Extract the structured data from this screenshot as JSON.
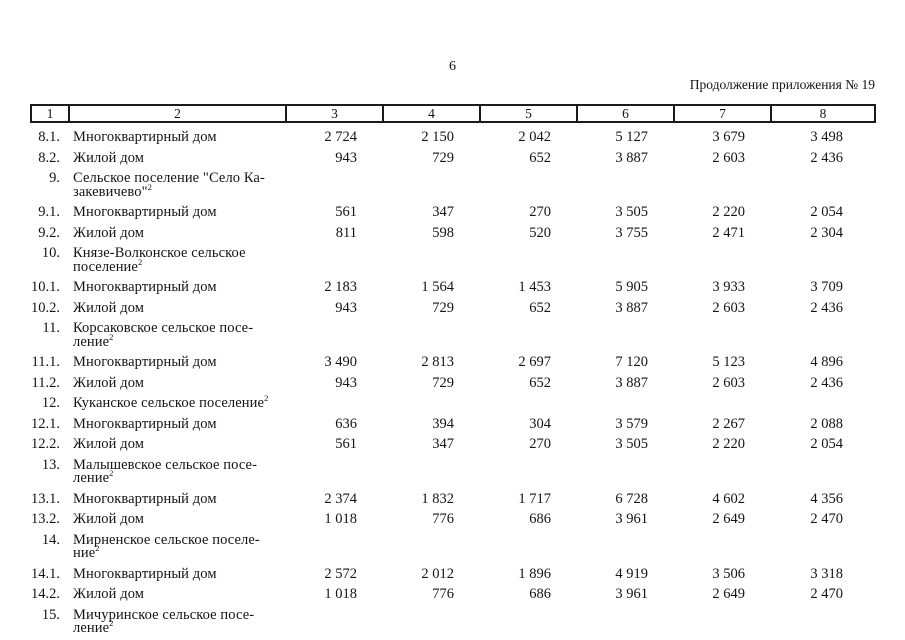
{
  "page": {
    "number": "6",
    "caption": "Продолжение приложения № 19"
  },
  "table": {
    "header_cols": [
      "1",
      "2",
      "3",
      "4",
      "5",
      "6",
      "7",
      "8"
    ],
    "rows": [
      {
        "num": "8.1.",
        "label": "Многоквартирный дом",
        "values": [
          "2 724",
          "2 150",
          "2 042",
          "5 127",
          "3 679",
          "3 498"
        ]
      },
      {
        "num": "8.2.",
        "label": "Жилой дом",
        "values": [
          "943",
          "729",
          "652",
          "3 887",
          "2 603",
          "2 436"
        ]
      },
      {
        "num": "9.",
        "label_lines": [
          "Сельское поселение \"Село Ка-",
          "закевичево\""
        ],
        "sup": "2",
        "values": []
      },
      {
        "num": "9.1.",
        "label": "Многоквартирный дом",
        "values": [
          "561",
          "347",
          "270",
          "3 505",
          "2 220",
          "2 054"
        ]
      },
      {
        "num": "9.2.",
        "label": "Жилой дом",
        "values": [
          "811",
          "598",
          "520",
          "3 755",
          "2 471",
          "2 304"
        ]
      },
      {
        "num": "10.",
        "label_lines": [
          "Князе-Волконское сельское",
          "поселение"
        ],
        "sup": "2",
        "values": []
      },
      {
        "num": "10.1.",
        "label": "Многоквартирный дом",
        "values": [
          "2 183",
          "1 564",
          "1 453",
          "5 905",
          "3 933",
          "3 709"
        ]
      },
      {
        "num": "10.2.",
        "label": "Жилой дом",
        "values": [
          "943",
          "729",
          "652",
          "3 887",
          "2 603",
          "2 436"
        ]
      },
      {
        "num": "11.",
        "label_lines": [
          "Корсаковское сельское посе-",
          "ление"
        ],
        "sup": "2",
        "values": []
      },
      {
        "num": "11.1.",
        "label": "Многоквартирный дом",
        "values": [
          "3 490",
          "2 813",
          "2 697",
          "7 120",
          "5 123",
          "4 896"
        ]
      },
      {
        "num": "11.2.",
        "label": "Жилой дом",
        "values": [
          "943",
          "729",
          "652",
          "3 887",
          "2 603",
          "2 436"
        ]
      },
      {
        "num": "12.",
        "label_lines": [
          "Куканское сельское поселение"
        ],
        "sup": "2",
        "values": []
      },
      {
        "num": "12.1.",
        "label": "Многоквартирный дом",
        "values": [
          "636",
          "394",
          "304",
          "3 579",
          "2 267",
          "2 088"
        ]
      },
      {
        "num": "12.2.",
        "label": "Жилой дом",
        "values": [
          "561",
          "347",
          "270",
          "3 505",
          "2 220",
          "2 054"
        ]
      },
      {
        "num": "13.",
        "label_lines": [
          "Малышевское сельское посе-",
          "ление"
        ],
        "sup": "2",
        "values": []
      },
      {
        "num": "13.1.",
        "label": "Многоквартирный дом",
        "values": [
          "2 374",
          "1 832",
          "1 717",
          "6 728",
          "4 602",
          "4 356"
        ]
      },
      {
        "num": "13.2.",
        "label": "Жилой дом",
        "values": [
          "1 018",
          "776",
          "686",
          "3 961",
          "2 649",
          "2 470"
        ]
      },
      {
        "num": "14.",
        "label_lines": [
          "Мирненское сельское поселе-",
          "ние"
        ],
        "sup": "2",
        "values": []
      },
      {
        "num": "14.1.",
        "label": "Многоквартирный дом",
        "values": [
          "2 572",
          "2 012",
          "1 896",
          "4 919",
          "3 506",
          "3 318"
        ]
      },
      {
        "num": "14.2.",
        "label": "Жилой дом",
        "values": [
          "1 018",
          "776",
          "686",
          "3 961",
          "2 649",
          "2 470"
        ]
      },
      {
        "num": "15.",
        "label_lines": [
          "Мичуринское сельское посе-",
          "ление"
        ],
        "sup": "2",
        "values": []
      }
    ]
  }
}
